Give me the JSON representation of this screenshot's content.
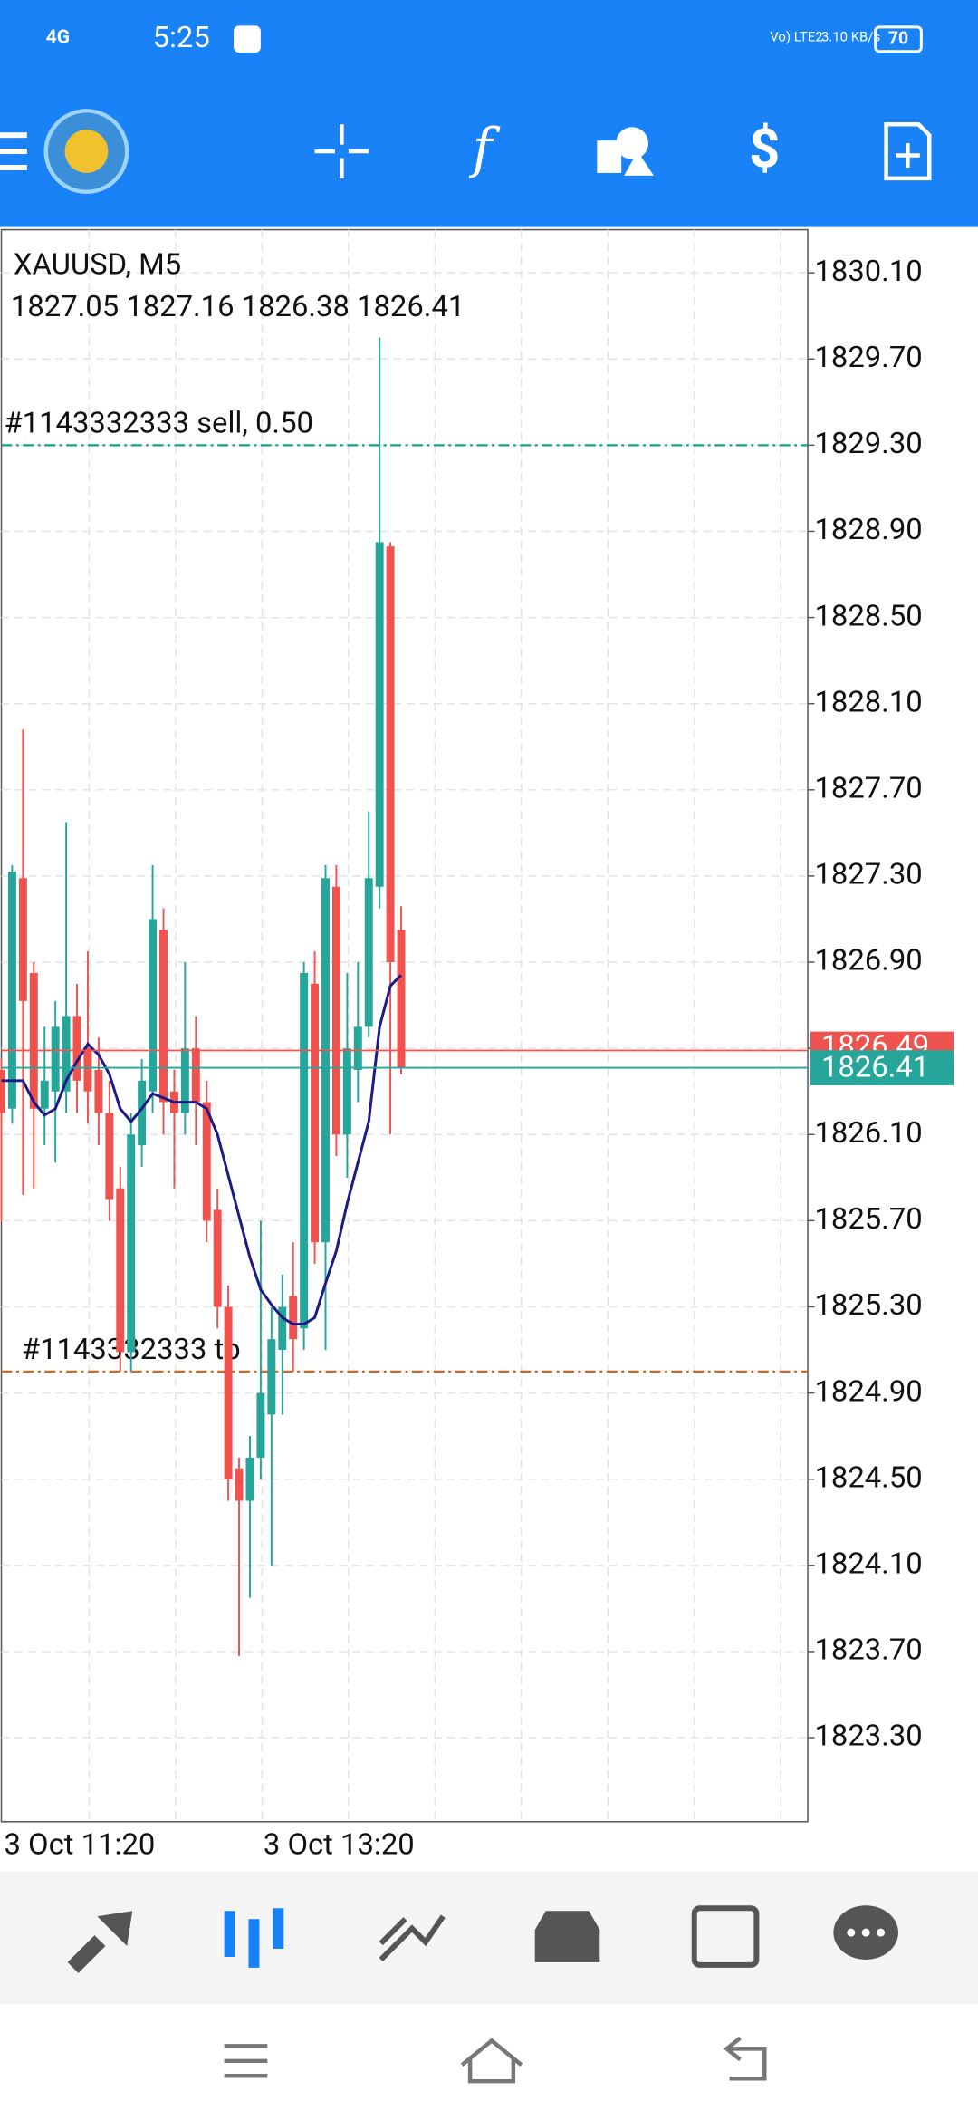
{
  "status_bar": {
    "network": "4G",
    "time": "5:25",
    "volte": "Vo) LTE2",
    "speed": "3.10 KB/s",
    "battery": "70"
  },
  "chart_data": {
    "type": "candlestick",
    "symbol": "XAUUSD, M5",
    "ohlc_text": "1827.05 1827.16 1826.38 1826.41",
    "up_color": "#26a69a",
    "down_color": "#ef5350",
    "ma_color": "#1c1a86",
    "grid": true,
    "categories": [
      "3 Oct 11:20",
      null,
      null,
      null,
      null,
      null,
      null,
      null,
      null,
      null,
      null,
      null,
      null,
      null,
      null,
      null,
      null,
      null,
      null,
      null,
      null,
      null,
      null,
      null,
      "3 Oct 13:20",
      null,
      null,
      null,
      null,
      null,
      null,
      null,
      null,
      null,
      null,
      null,
      null,
      null
    ],
    "open": [
      1826.4,
      1826.22,
      1827.29,
      1826.85,
      1826.22,
      1826.3,
      1826.3,
      1826.65,
      1826.5,
      1826.4,
      1826.2,
      1825.85,
      1825.09,
      1826.05,
      1826.3,
      1827.05,
      1826.3,
      1826.2,
      1826.5,
      1826.25,
      1825.75,
      1825.3,
      1824.55,
      1824.4,
      1824.6,
      1824.8,
      1825.1,
      1825.35,
      1825.2,
      1826.8,
      1825.6,
      1827.25,
      1826.1,
      1826.4,
      1826.6,
      1827.25,
      1828.83,
      1827.05
    ],
    "high": [
      1826.45,
      1827.35,
      1827.98,
      1826.9,
      1826.6,
      1826.72,
      1827.55,
      1826.8,
      1826.95,
      1826.55,
      1826.35,
      1825.95,
      1826.2,
      1826.45,
      1827.35,
      1827.15,
      1826.4,
      1826.9,
      1826.65,
      1826.35,
      1825.85,
      1825.4,
      1824.6,
      1824.7,
      1825.7,
      1825.3,
      1825.45,
      1825.6,
      1826.9,
      1826.95,
      1827.35,
      1827.35,
      1826.85,
      1826.9,
      1827.6,
      1829.8,
      1828.85,
      1827.16
    ],
    "low": [
      1825.7,
      1826.15,
      1825.82,
      1825.85,
      1826.05,
      1825.97,
      1826.2,
      1826.2,
      1826.15,
      1826.05,
      1825.7,
      1825.0,
      1825.0,
      1825.95,
      1826.2,
      1826.1,
      1825.85,
      1826.1,
      1826.05,
      1825.6,
      1825.2,
      1824.4,
      1823.68,
      1823.95,
      1824.5,
      1824.1,
      1824.8,
      1825.0,
      1825.1,
      1825.5,
      1825.1,
      1826.0,
      1825.9,
      1826.25,
      1826.55,
      1827.15,
      1826.1,
      1826.38
    ],
    "close": [
      1826.2,
      1827.32,
      1826.72,
      1826.22,
      1826.35,
      1826.6,
      1826.65,
      1826.35,
      1826.3,
      1826.2,
      1825.8,
      1825.09,
      1826.1,
      1826.35,
      1827.1,
      1826.25,
      1826.2,
      1826.5,
      1826.25,
      1825.7,
      1825.3,
      1824.5,
      1824.4,
      1824.6,
      1824.9,
      1825.15,
      1825.3,
      1825.15,
      1826.85,
      1825.6,
      1827.29,
      1826.1,
      1826.5,
      1826.6,
      1827.29,
      1828.85,
      1826.9,
      1826.41
    ],
    "ma": [
      1826.35,
      1826.35,
      1826.35,
      1826.25,
      1826.19,
      1826.22,
      1826.35,
      1826.44,
      1826.52,
      1826.47,
      1826.38,
      1826.22,
      1826.16,
      1826.22,
      1826.29,
      1826.27,
      1826.25,
      1826.25,
      1826.25,
      1826.22,
      1826.1,
      1825.91,
      1825.72,
      1825.53,
      1825.38,
      1825.31,
      1825.25,
      1825.22,
      1825.22,
      1825.25,
      1825.41,
      1825.56,
      1825.78,
      1825.97,
      1826.16,
      1826.6,
      1826.79,
      1826.84
    ],
    "ylim": [
      1822.91,
      1830.3
    ],
    "yticks": [
      {
        "value": 1830.1,
        "label": "1830.10"
      },
      {
        "value": 1829.7,
        "label": "1829.70"
      },
      {
        "value": 1829.3,
        "label": "1829.30"
      },
      {
        "value": 1828.9,
        "label": "1828.90"
      },
      {
        "value": 1828.5,
        "label": "1828.50"
      },
      {
        "value": 1828.1,
        "label": "1828.10"
      },
      {
        "value": 1827.7,
        "label": "1827.70"
      },
      {
        "value": 1827.3,
        "label": "1827.30"
      },
      {
        "value": 1826.9,
        "label": "1826.90"
      },
      {
        "value": 1826.5,
        "label": "1826.50"
      },
      {
        "value": 1826.1,
        "label": "1826.10"
      },
      {
        "value": 1825.7,
        "label": "1825.70"
      },
      {
        "value": 1825.3,
        "label": "1825.30"
      },
      {
        "value": 1824.9,
        "label": "1824.90"
      },
      {
        "value": 1824.5,
        "label": "1824.50"
      },
      {
        "value": 1824.1,
        "label": "1824.10"
      },
      {
        "value": 1823.7,
        "label": "1823.70"
      },
      {
        "value": 1823.3,
        "label": "1823.30"
      }
    ],
    "bid": 1826.41,
    "ask": 1826.49,
    "orders": [
      {
        "label": "#1143332333 sell, 0.50",
        "price": 1829.3,
        "color": "#1a9e8f"
      },
      {
        "label": "#1143332333 tp",
        "price": 1825.0,
        "color": "#d2691e"
      }
    ]
  }
}
